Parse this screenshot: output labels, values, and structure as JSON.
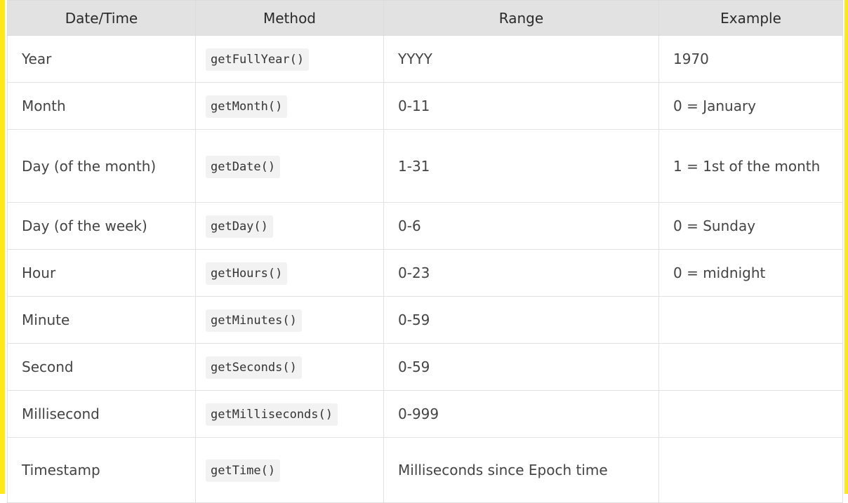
{
  "table": {
    "headers": [
      "Date/Time",
      "Method",
      "Range",
      "Example"
    ],
    "rows": [
      {
        "datetime": "Year",
        "method": "getFullYear()",
        "range": "YYYY",
        "example": "1970"
      },
      {
        "datetime": "Month",
        "method": "getMonth()",
        "range": "0-11",
        "example": "0 = January"
      },
      {
        "datetime": "Day (of the month)",
        "method": "getDate()",
        "range": "1-31",
        "example": "1 = 1st of the month"
      },
      {
        "datetime": "Day (of the week)",
        "method": "getDay()",
        "range": "0-6",
        "example": "0 = Sunday"
      },
      {
        "datetime": "Hour",
        "method": "getHours()",
        "range": "0-23",
        "example": "0 = midnight"
      },
      {
        "datetime": "Minute",
        "method": "getMinutes()",
        "range": "0-59",
        "example": ""
      },
      {
        "datetime": "Second",
        "method": "getSeconds()",
        "range": "0-59",
        "example": ""
      },
      {
        "datetime": "Millisecond",
        "method": "getMilliseconds()",
        "range": "0-999",
        "example": ""
      },
      {
        "datetime": "Timestamp",
        "method": "getTime()",
        "range": "Milliseconds since Epoch time",
        "example": ""
      }
    ]
  },
  "colors": {
    "border_accent": "#ffe81a",
    "header_bg": "#e2e2e2",
    "code_bg": "#f2f2f2"
  }
}
